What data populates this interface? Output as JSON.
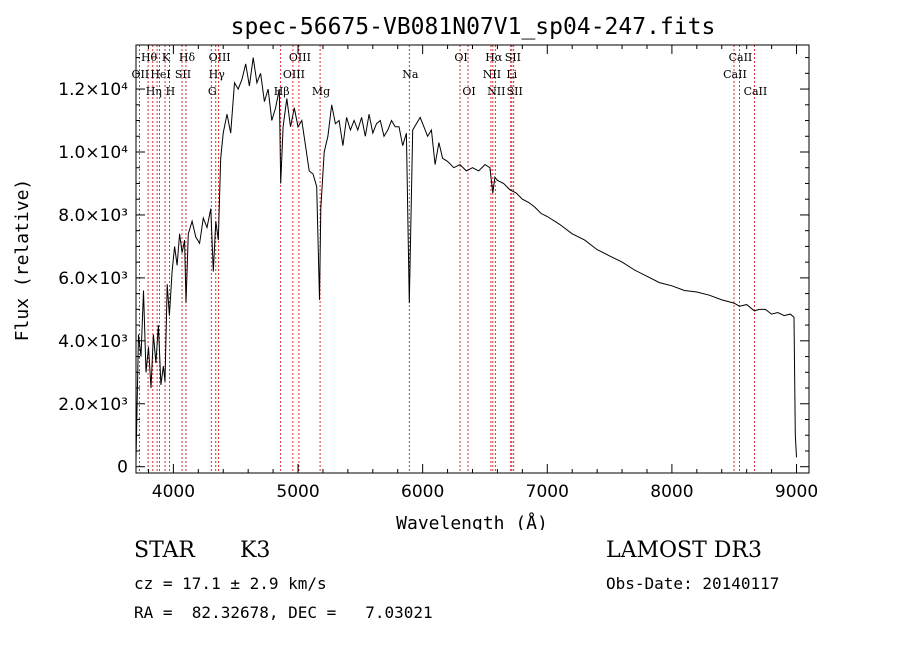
{
  "chart_data": {
    "type": "line",
    "title": "spec-56675-VB081N07V1_sp04-247.fits",
    "xlabel": "Wavelength (Å)",
    "ylabel": "Flux (relative)",
    "xlim": [
      3700,
      9100
    ],
    "ylim": [
      -200,
      13400
    ],
    "x_ticks": [
      4000,
      5000,
      6000,
      7000,
      8000,
      9000
    ],
    "x_tick_labels": [
      "4000",
      "5000",
      "6000",
      "7000",
      "8000",
      "9000"
    ],
    "y_ticks": [
      0,
      2000,
      4000,
      6000,
      8000,
      10000,
      12000
    ],
    "y_tick_labels": [
      "0",
      "2.0×10³",
      "4.0×10³",
      "6.0×10³",
      "8.0×10³",
      "1.0×10⁴",
      "1.2×10⁴"
    ],
    "grid": false,
    "series": [
      {
        "name": "spectrum",
        "color": "#000000",
        "x": [
          3700,
          3720,
          3740,
          3760,
          3780,
          3800,
          3820,
          3840,
          3860,
          3880,
          3900,
          3920,
          3933,
          3950,
          3968,
          3990,
          4010,
          4030,
          4050,
          4070,
          4090,
          4101,
          4120,
          4150,
          4180,
          4210,
          4240,
          4270,
          4300,
          4320,
          4340,
          4360,
          4380,
          4400,
          4430,
          4460,
          4490,
          4520,
          4550,
          4580,
          4610,
          4640,
          4670,
          4700,
          4730,
          4760,
          4790,
          4820,
          4850,
          4861,
          4880,
          4910,
          4940,
          4970,
          5000,
          5030,
          5060,
          5090,
          5120,
          5150,
          5172,
          5183,
          5210,
          5240,
          5270,
          5300,
          5330,
          5360,
          5390,
          5420,
          5450,
          5480,
          5510,
          5540,
          5570,
          5600,
          5630,
          5660,
          5690,
          5720,
          5750,
          5780,
          5810,
          5840,
          5870,
          5893,
          5920,
          5950,
          5980,
          6010,
          6040,
          6070,
          6100,
          6130,
          6160,
          6200,
          6250,
          6300,
          6350,
          6400,
          6450,
          6500,
          6540,
          6563,
          6580,
          6600,
          6650,
          6700,
          6750,
          6800,
          6850,
          6900,
          6950,
          7000,
          7100,
          7200,
          7300,
          7400,
          7500,
          7600,
          7700,
          7800,
          7900,
          8000,
          8100,
          8200,
          8300,
          8400,
          8498,
          8542,
          8600,
          8662,
          8700,
          8750,
          8800,
          8850,
          8900,
          8950,
          8980,
          8990,
          9000
        ],
        "values": [
          200,
          4200,
          3500,
          5600,
          3000,
          3800,
          2500,
          4200,
          3300,
          4500,
          2600,
          3200,
          2700,
          5800,
          4800,
          6200,
          7000,
          6400,
          7400,
          6800,
          7200,
          5200,
          7400,
          7800,
          7300,
          7100,
          7900,
          7600,
          8200,
          6200,
          7800,
          7200,
          9800,
          10600,
          11200,
          10600,
          12200,
          12000,
          12300,
          12800,
          12100,
          13000,
          12200,
          12500,
          11600,
          12000,
          11000,
          11400,
          12000,
          9000,
          10800,
          11700,
          10800,
          11400,
          10800,
          11000,
          10200,
          9400,
          9300,
          8900,
          5300,
          8200,
          10000,
          10500,
          11500,
          10900,
          11000,
          10200,
          11100,
          10700,
          11000,
          10700,
          11100,
          10500,
          11200,
          10600,
          10900,
          11000,
          10500,
          10700,
          11000,
          10800,
          10800,
          10200,
          10600,
          5200,
          10700,
          10900,
          11100,
          10800,
          10500,
          10700,
          9600,
          10300,
          9800,
          9700,
          9500,
          9600,
          9400,
          9500,
          9400,
          9600,
          9500,
          8700,
          9200,
          9100,
          9000,
          8800,
          8700,
          8500,
          8400,
          8250,
          8050,
          7950,
          7700,
          7400,
          7200,
          6900,
          6700,
          6500,
          6250,
          6050,
          5850,
          5750,
          5600,
          5550,
          5450,
          5300,
          5200,
          5100,
          5150,
          4950,
          5000,
          5000,
          4850,
          4900,
          4800,
          4850,
          4750,
          1000,
          300
        ]
      }
    ],
    "lines": [
      {
        "wavelength": 3727,
        "label": "OII",
        "row": 1
      },
      {
        "wavelength": 3797,
        "label": "Hθ",
        "row": 0
      },
      {
        "wavelength": 3835,
        "label": "Hη",
        "row": 2
      },
      {
        "wavelength": 3869,
        "label": "",
        "row": 1
      },
      {
        "wavelength": 3889,
        "label": "HeI",
        "row": 1
      },
      {
        "wavelength": 3933,
        "label": "K",
        "row": 0
      },
      {
        "wavelength": 3968,
        "label": "H",
        "row": 2
      },
      {
        "wavelength": 4069,
        "label": "SII",
        "row": 1
      },
      {
        "wavelength": 4101,
        "label": "Hδ",
        "row": 0
      },
      {
        "wavelength": 4304,
        "label": "G",
        "row": 2
      },
      {
        "wavelength": 4340,
        "label": "Hγ",
        "row": 1
      },
      {
        "wavelength": 4363,
        "label": "OIII",
        "row": 0
      },
      {
        "wavelength": 4861,
        "label": "Hβ",
        "row": 2
      },
      {
        "wavelength": 4959,
        "label": "OIII",
        "row": 1
      },
      {
        "wavelength": 5007,
        "label": "OIII",
        "row": 0
      },
      {
        "wavelength": 5177,
        "label": "Mg",
        "row": 2
      },
      {
        "wavelength": 5893,
        "label": "Na",
        "row": 1
      },
      {
        "wavelength": 6300,
        "label": "OI",
        "row": 0
      },
      {
        "wavelength": 6364,
        "label": "OI",
        "row": 2
      },
      {
        "wavelength": 6548,
        "label": "NII",
        "row": 1
      },
      {
        "wavelength": 6563,
        "label": "Hα",
        "row": 0
      },
      {
        "wavelength": 6583,
        "label": "NII",
        "row": 2
      },
      {
        "wavelength": 6707,
        "label": "Li",
        "row": 1
      },
      {
        "wavelength": 6716,
        "label": "SII",
        "row": 0
      },
      {
        "wavelength": 6731,
        "label": "SII",
        "row": 2
      },
      {
        "wavelength": 8498,
        "label": "CaII",
        "row": 1
      },
      {
        "wavelength": 8542,
        "label": "CaII",
        "row": 0
      },
      {
        "wavelength": 8662,
        "label": "CaII",
        "row": 2
      }
    ]
  },
  "info": {
    "class": "STAR",
    "subclass": "K3",
    "survey": "LAMOST DR3",
    "cz": "cz = 17.1 ± 2.9 km/s",
    "obs_date": "Obs-Date: 20140117",
    "coords": "RA =  82.32678, DEC =   7.03021"
  },
  "colors": {
    "line_marker": "#cc0000",
    "spectrum": "#000000",
    "axis": "#000000"
  }
}
